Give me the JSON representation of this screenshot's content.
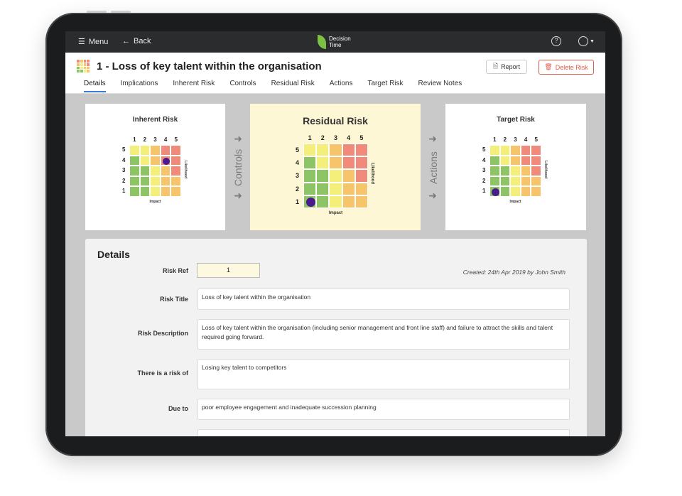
{
  "topbar": {
    "menu_label": "Menu",
    "back_label": "Back",
    "logo_line1": "Decision",
    "logo_line2": "Time",
    "help_glyph": "?"
  },
  "header": {
    "title": "1 - Loss of key talent within the organisation",
    "report_label": "Report",
    "delete_label": "Delete Risk",
    "tabs": [
      "Details",
      "Implications",
      "Inherent Risk",
      "Controls",
      "Residual Risk",
      "Actions",
      "Target Risk",
      "Review Notes"
    ],
    "active_tab": "Details"
  },
  "cards": {
    "inherent": {
      "title": "Inherent Risk",
      "impact": 4,
      "likelihood": 4
    },
    "residual": {
      "title": "Residual Risk",
      "impact": 1,
      "likelihood": 1
    },
    "target": {
      "title": "Target Risk",
      "impact": 1,
      "likelihood": 1
    },
    "controls_label": "Controls",
    "actions_label": "Actions",
    "col_numbers": [
      "1",
      "2",
      "3",
      "4",
      "5"
    ],
    "row_numbers": [
      "5",
      "4",
      "3",
      "2",
      "1"
    ],
    "impact_label": "Impact",
    "likelihood_label": "Likelihood"
  },
  "matrix_colors": {
    "green": "#8cc466",
    "yellow": "#f4ee7a",
    "orange": "#f6c46a",
    "red": "#f08a7a",
    "dot": "#4b1a8c"
  },
  "details": {
    "heading": "Details",
    "risk_ref_label": "Risk Ref",
    "risk_ref_value": "1",
    "created": "Created: 24th Apr 2019 by John Smith",
    "risk_title_label": "Risk Title",
    "risk_title_value": "Loss of key talent within the organisation",
    "risk_description_label": "Risk Description",
    "risk_description_value": "Loss of key talent within the organisation (including senior management and front line staff) and failure to attract the skills and talent required going forward.",
    "risk_of_label": "There is a risk of",
    "risk_of_value": "Losing key talent to competitors",
    "due_to_label": "Due to",
    "due_to_value": "poor employee engagement and inadequate succession planning"
  }
}
